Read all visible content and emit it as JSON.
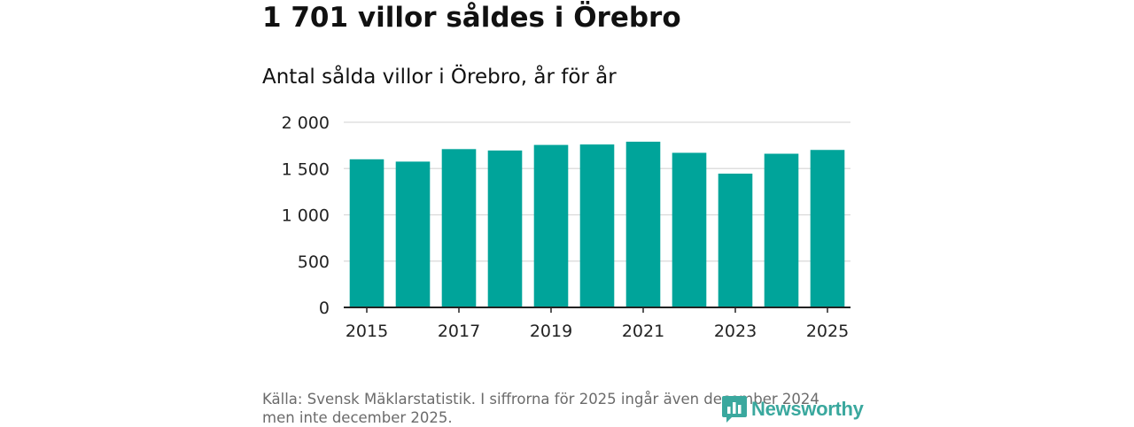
{
  "headline": "1 701 villor såldes i Örebro",
  "subtitle": "Antal sålda villor i Örebro, år för år",
  "source": "Källa: Svensk Mäklarstatistik. I siffrorna för 2025 ingår även december 2024 men inte december 2025.",
  "logo": {
    "text": "Newsworthy",
    "icon": "newsworthy-logo-icon",
    "color": "#3aa89e"
  },
  "colors": {
    "bar": "#00a49a",
    "grid": "#d9d9d9",
    "axis": "#222222"
  },
  "chart_data": {
    "type": "bar",
    "title": "Antal sålda villor i Örebro, år för år",
    "xlabel": "",
    "ylabel": "",
    "categories": [
      "2015",
      "2016",
      "2017",
      "2018",
      "2019",
      "2020",
      "2021",
      "2022",
      "2023",
      "2024",
      "2025"
    ],
    "values": [
      1600,
      1575,
      1710,
      1695,
      1755,
      1760,
      1790,
      1670,
      1445,
      1660,
      1701
    ],
    "ylim": [
      0,
      2000
    ],
    "yticks": [
      0,
      500,
      1000,
      1500,
      2000
    ],
    "ytick_labels": [
      "0",
      "500",
      "1 000",
      "1 500",
      "2 000"
    ],
    "xtick_labels": [
      "2015",
      "2017",
      "2019",
      "2021",
      "2023",
      "2025"
    ],
    "grid": true
  }
}
